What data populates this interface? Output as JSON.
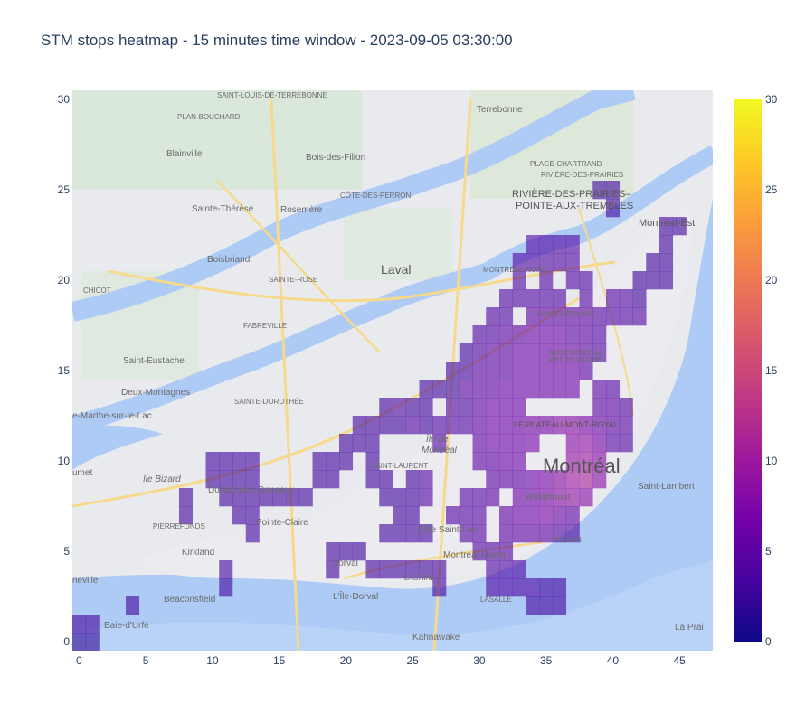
{
  "chart_data": {
    "type": "heatmap",
    "title": "STM stops heatmap - 15 minutes time window - 2023-09-05 03:30:00",
    "xlabel": "",
    "ylabel": "",
    "xlim": [
      -0.5,
      47.5
    ],
    "ylim": [
      -0.5,
      30.5
    ],
    "x_ticks": [
      0,
      5,
      10,
      15,
      20,
      25,
      30,
      35,
      40,
      45
    ],
    "y_ticks": [
      0,
      5,
      10,
      15,
      20,
      25,
      30
    ],
    "colorscale": "plasma",
    "colorbar": {
      "min": 0,
      "max": 30,
      "ticks": [
        0,
        5,
        10,
        15,
        20,
        25,
        30
      ]
    },
    "background": "map of Montréal region",
    "cell_size": 1,
    "cells": [
      [
        0,
        0,
        2
      ],
      [
        1,
        0,
        2
      ],
      [
        0,
        1,
        3
      ],
      [
        1,
        1,
        3
      ],
      [
        4,
        2,
        3
      ],
      [
        11,
        3,
        3
      ],
      [
        11,
        4,
        3
      ],
      [
        8,
        7,
        3
      ],
      [
        8,
        8,
        3
      ],
      [
        10,
        9,
        3
      ],
      [
        11,
        9,
        3
      ],
      [
        12,
        9,
        3
      ],
      [
        13,
        9,
        3
      ],
      [
        10,
        10,
        3
      ],
      [
        11,
        10,
        3
      ],
      [
        12,
        10,
        3
      ],
      [
        13,
        10,
        3
      ],
      [
        11,
        8,
        3
      ],
      [
        12,
        8,
        3
      ],
      [
        13,
        8,
        3
      ],
      [
        14,
        8,
        3
      ],
      [
        15,
        8,
        3
      ],
      [
        16,
        8,
        3
      ],
      [
        17,
        8,
        3
      ],
      [
        12,
        7,
        3
      ],
      [
        13,
        7,
        3
      ],
      [
        13,
        6,
        3
      ],
      [
        18,
        9,
        3
      ],
      [
        18,
        10,
        3
      ],
      [
        19,
        9,
        3
      ],
      [
        19,
        10,
        3
      ],
      [
        20,
        10,
        3
      ],
      [
        20,
        11,
        3
      ],
      [
        21,
        11,
        3
      ],
      [
        21,
        12,
        3
      ],
      [
        22,
        12,
        3
      ],
      [
        22,
        11,
        3
      ],
      [
        22,
        10,
        3
      ],
      [
        22,
        9,
        3
      ],
      [
        23,
        9,
        3
      ],
      [
        23,
        8,
        3
      ],
      [
        24,
        8,
        3
      ],
      [
        25,
        8,
        3
      ],
      [
        25,
        9,
        3
      ],
      [
        26,
        9,
        4
      ],
      [
        26,
        8,
        4
      ],
      [
        24,
        7,
        3
      ],
      [
        25,
        7,
        3
      ],
      [
        24,
        6,
        3
      ],
      [
        25,
        6,
        3
      ],
      [
        26,
        6,
        3
      ],
      [
        23,
        6,
        3
      ],
      [
        19,
        5,
        3
      ],
      [
        20,
        5,
        3
      ],
      [
        21,
        5,
        3
      ],
      [
        19,
        4,
        3
      ],
      [
        22,
        4,
        3
      ],
      [
        23,
        4,
        3
      ],
      [
        24,
        4,
        3
      ],
      [
        25,
        4,
        3
      ],
      [
        26,
        4,
        3
      ],
      [
        27,
        4,
        3
      ],
      [
        27,
        3,
        3
      ],
      [
        23,
        12,
        3
      ],
      [
        24,
        12,
        3
      ],
      [
        24,
        13,
        4
      ],
      [
        23,
        13,
        3
      ],
      [
        25,
        12,
        4
      ],
      [
        25,
        13,
        3
      ],
      [
        26,
        13,
        3
      ],
      [
        26,
        12,
        3
      ],
      [
        26,
        14,
        3
      ],
      [
        27,
        14,
        3
      ],
      [
        28,
        14,
        3
      ],
      [
        28,
        15,
        3
      ],
      [
        29,
        15,
        3
      ],
      [
        29,
        16,
        3
      ],
      [
        30,
        16,
        4
      ],
      [
        30,
        17,
        4
      ],
      [
        31,
        17,
        4
      ],
      [
        31,
        18,
        4
      ],
      [
        32,
        18,
        4
      ],
      [
        32,
        19,
        4
      ],
      [
        33,
        19,
        4
      ],
      [
        34,
        19,
        4
      ],
      [
        35,
        19,
        4
      ],
      [
        36,
        19,
        4
      ],
      [
        33,
        20,
        4
      ],
      [
        33,
        21,
        4
      ],
      [
        34,
        21,
        4
      ],
      [
        35,
        21,
        4
      ],
      [
        34,
        22,
        4
      ],
      [
        35,
        22,
        4
      ],
      [
        36,
        22,
        4
      ],
      [
        37,
        22,
        4
      ],
      [
        36,
        21,
        4
      ],
      [
        37,
        21,
        4
      ],
      [
        35,
        20,
        4
      ],
      [
        37,
        20,
        4
      ],
      [
        38,
        20,
        4
      ],
      [
        38,
        19,
        4
      ],
      [
        39,
        18,
        4
      ],
      [
        40,
        18,
        4
      ],
      [
        41,
        18,
        4
      ],
      [
        41,
        19,
        4
      ],
      [
        40,
        19,
        4
      ],
      [
        39,
        25,
        3
      ],
      [
        40,
        25,
        3
      ],
      [
        40,
        24,
        3
      ],
      [
        44,
        23,
        3
      ],
      [
        45,
        23,
        3
      ],
      [
        44,
        22,
        3
      ],
      [
        43,
        21,
        3
      ],
      [
        44,
        21,
        3
      ],
      [
        43,
        20,
        3
      ],
      [
        44,
        20,
        3
      ],
      [
        42,
        20,
        3
      ],
      [
        42,
        19,
        3
      ],
      [
        42,
        18,
        4
      ],
      [
        27,
        11,
        4
      ],
      [
        27,
        12,
        4
      ],
      [
        28,
        12,
        4
      ],
      [
        29,
        12,
        4
      ],
      [
        28,
        13,
        4
      ],
      [
        29,
        13,
        4
      ],
      [
        29,
        14,
        5
      ],
      [
        30,
        14,
        5
      ],
      [
        31,
        14,
        5
      ],
      [
        30,
        13,
        5
      ],
      [
        31,
        13,
        6
      ],
      [
        32,
        13,
        6
      ],
      [
        33,
        13,
        6
      ],
      [
        32,
        14,
        6
      ],
      [
        33,
        14,
        6
      ],
      [
        34,
        14,
        6
      ],
      [
        35,
        14,
        6
      ],
      [
        36,
        14,
        6
      ],
      [
        37,
        14,
        6
      ],
      [
        30,
        15,
        5
      ],
      [
        31,
        15,
        5
      ],
      [
        32,
        15,
        5
      ],
      [
        33,
        15,
        6
      ],
      [
        34,
        15,
        6
      ],
      [
        35,
        15,
        6
      ],
      [
        36,
        15,
        6
      ],
      [
        37,
        15,
        6
      ],
      [
        38,
        15,
        5
      ],
      [
        31,
        16,
        5
      ],
      [
        32,
        16,
        5
      ],
      [
        33,
        16,
        6
      ],
      [
        34,
        16,
        6
      ],
      [
        35,
        16,
        6
      ],
      [
        36,
        16,
        6
      ],
      [
        37,
        16,
        6
      ],
      [
        38,
        16,
        5
      ],
      [
        39,
        16,
        4
      ],
      [
        32,
        17,
        5
      ],
      [
        33,
        17,
        5
      ],
      [
        34,
        17,
        6
      ],
      [
        35,
        17,
        6
      ],
      [
        36,
        17,
        6
      ],
      [
        37,
        17,
        5
      ],
      [
        38,
        17,
        5
      ],
      [
        39,
        17,
        4
      ],
      [
        34,
        18,
        5
      ],
      [
        35,
        18,
        5
      ],
      [
        36,
        18,
        5
      ],
      [
        37,
        18,
        5
      ],
      [
        38,
        18,
        5
      ],
      [
        30,
        12,
        5
      ],
      [
        31,
        12,
        6
      ],
      [
        32,
        12,
        6
      ],
      [
        33,
        12,
        6
      ],
      [
        34,
        12,
        7
      ],
      [
        35,
        12,
        7
      ],
      [
        36,
        12,
        8
      ],
      [
        37,
        12,
        8
      ],
      [
        38,
        12,
        7
      ],
      [
        39,
        12,
        6
      ],
      [
        40,
        12,
        5
      ],
      [
        30,
        11,
        5
      ],
      [
        31,
        11,
        6
      ],
      [
        32,
        11,
        6
      ],
      [
        33,
        11,
        6
      ],
      [
        34,
        11,
        7
      ],
      [
        37,
        11,
        8
      ],
      [
        38,
        11,
        9
      ],
      [
        39,
        11,
        7
      ],
      [
        30,
        10,
        5
      ],
      [
        31,
        10,
        5
      ],
      [
        32,
        10,
        6
      ],
      [
        33,
        10,
        6
      ],
      [
        37,
        10,
        9
      ],
      [
        38,
        10,
        10
      ],
      [
        39,
        10,
        8
      ],
      [
        31,
        9,
        5
      ],
      [
        32,
        9,
        5
      ],
      [
        33,
        9,
        5
      ],
      [
        34,
        9,
        6
      ],
      [
        35,
        9,
        7
      ],
      [
        36,
        9,
        8
      ],
      [
        37,
        9,
        10
      ],
      [
        38,
        9,
        11
      ],
      [
        39,
        9,
        8
      ],
      [
        31,
        8,
        5
      ],
      [
        33,
        8,
        6
      ],
      [
        34,
        8,
        6
      ],
      [
        35,
        8,
        7
      ],
      [
        36,
        8,
        8
      ],
      [
        37,
        8,
        9
      ],
      [
        38,
        8,
        8
      ],
      [
        32,
        7,
        5
      ],
      [
        33,
        7,
        6
      ],
      [
        34,
        7,
        6
      ],
      [
        35,
        7,
        7
      ],
      [
        36,
        7,
        6
      ],
      [
        37,
        7,
        5
      ],
      [
        29,
        8,
        4
      ],
      [
        30,
        8,
        4
      ],
      [
        28,
        7,
        4
      ],
      [
        29,
        7,
        4
      ],
      [
        30,
        7,
        4
      ],
      [
        29,
        6,
        4
      ],
      [
        30,
        6,
        4
      ],
      [
        32,
        6,
        5
      ],
      [
        33,
        6,
        5
      ],
      [
        34,
        6,
        5
      ],
      [
        35,
        6,
        5
      ],
      [
        36,
        6,
        4
      ],
      [
        37,
        6,
        4
      ],
      [
        30,
        5,
        4
      ],
      [
        31,
        5,
        4
      ],
      [
        32,
        5,
        4
      ],
      [
        31,
        4,
        4
      ],
      [
        32,
        4,
        4
      ],
      [
        33,
        4,
        4
      ],
      [
        31,
        3,
        4
      ],
      [
        32,
        3,
        4
      ],
      [
        33,
        3,
        4
      ],
      [
        34,
        3,
        4
      ],
      [
        34,
        2,
        3
      ],
      [
        35,
        2,
        3
      ],
      [
        36,
        2,
        3
      ],
      [
        35,
        3,
        3
      ],
      [
        36,
        3,
        3
      ],
      [
        39,
        13,
        5
      ],
      [
        40,
        13,
        5
      ],
      [
        39,
        14,
        5
      ],
      [
        40,
        14,
        4
      ],
      [
        41,
        13,
        4
      ],
      [
        41,
        12,
        4
      ],
      [
        40,
        11,
        4
      ],
      [
        41,
        11,
        4
      ]
    ]
  }
}
